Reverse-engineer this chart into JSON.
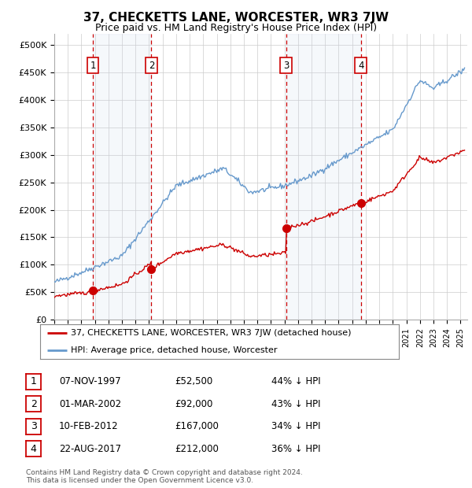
{
  "title": "37, CHECKETTS LANE, WORCESTER, WR3 7JW",
  "subtitle": "Price paid vs. HM Land Registry's House Price Index (HPI)",
  "xlim_start": 1995.0,
  "xlim_end": 2025.5,
  "ylim": [
    0,
    520000
  ],
  "yticks": [
    0,
    50000,
    100000,
    150000,
    200000,
    250000,
    300000,
    350000,
    400000,
    450000,
    500000
  ],
  "ytick_labels": [
    "£0",
    "£50K",
    "£100K",
    "£150K",
    "£200K",
    "£250K",
    "£300K",
    "£350K",
    "£400K",
    "£450K",
    "£500K"
  ],
  "purchases": [
    {
      "date_num": 1997.85,
      "price": 52500,
      "label": "1"
    },
    {
      "date_num": 2002.17,
      "price": 92000,
      "label": "2"
    },
    {
      "date_num": 2012.11,
      "price": 167000,
      "label": "3"
    },
    {
      "date_num": 2017.64,
      "price": 212000,
      "label": "4"
    }
  ],
  "vline_dates": [
    1997.85,
    2002.17,
    2012.11,
    2017.64
  ],
  "legend_entries": [
    "37, CHECKETTS LANE, WORCESTER, WR3 7JW (detached house)",
    "HPI: Average price, detached house, Worcester"
  ],
  "table_rows": [
    [
      "1",
      "07-NOV-1997",
      "£52,500",
      "44% ↓ HPI"
    ],
    [
      "2",
      "01-MAR-2002",
      "£92,000",
      "43% ↓ HPI"
    ],
    [
      "3",
      "10-FEB-2012",
      "£167,000",
      "34% ↓ HPI"
    ],
    [
      "4",
      "22-AUG-2017",
      "£212,000",
      "36% ↓ HPI"
    ]
  ],
  "footnote": "Contains HM Land Registry data © Crown copyright and database right 2024.\nThis data is licensed under the Open Government Licence v3.0.",
  "property_line_color": "#cc0000",
  "hpi_line_color": "#6699cc",
  "vline_color": "#cc0000",
  "plot_bg": "#ffffff",
  "span_color": "#ccd9ec",
  "number_box_color": "#cc0000"
}
